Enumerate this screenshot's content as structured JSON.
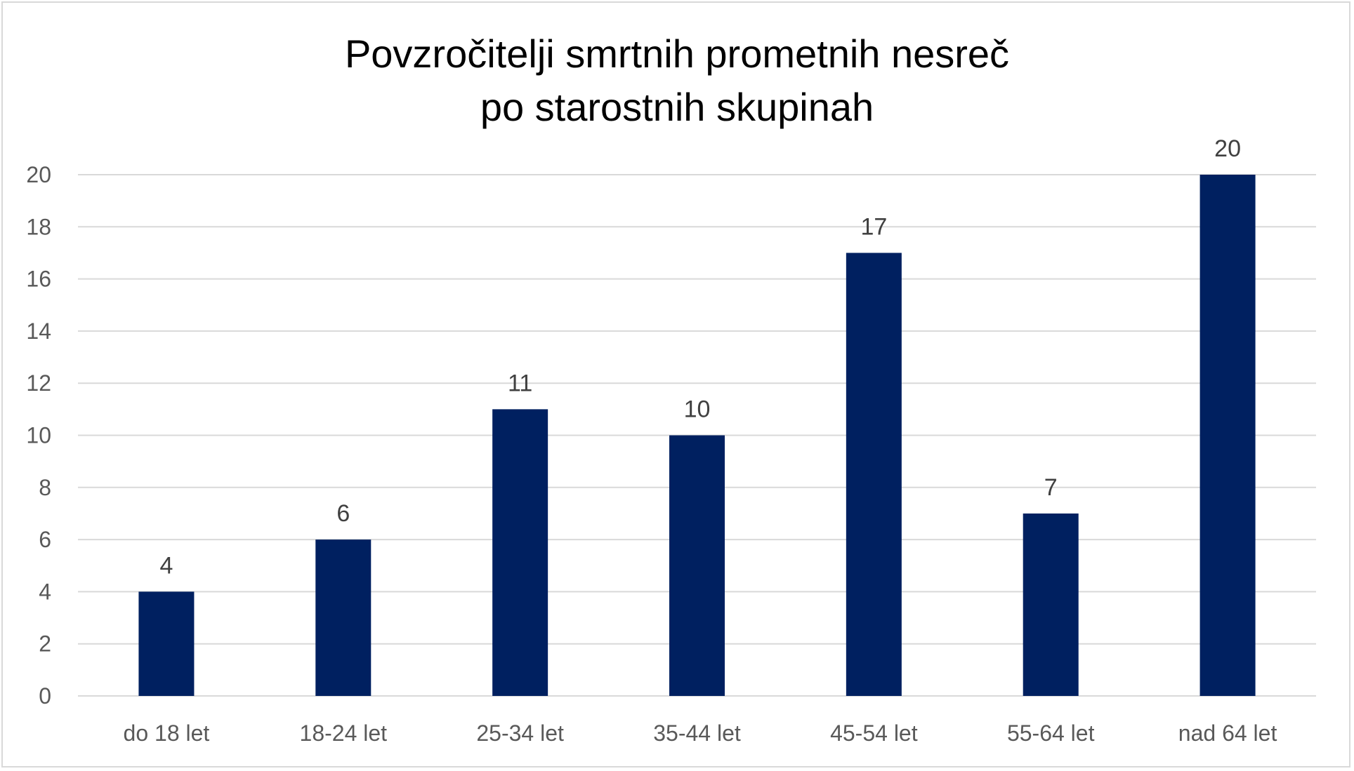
{
  "chart_data": {
    "type": "bar",
    "title_lines": [
      "Povzročitelji smrtnih prometnih nesreč",
      "po starostnih skupinah"
    ],
    "categories": [
      "do 18 let",
      "18-24 let",
      "25-34 let",
      "35-44 let",
      "45-54 let",
      "55-64 let",
      "nad 64 let"
    ],
    "values": [
      4,
      6,
      11,
      10,
      17,
      7,
      20
    ],
    "data_labels": [
      "4",
      "6",
      "11",
      "10",
      "17",
      "7",
      "20"
    ],
    "y_ticks": [
      "0",
      "2",
      "4",
      "6",
      "8",
      "10",
      "12",
      "14",
      "16",
      "18",
      "20"
    ],
    "ylim": [
      0,
      20
    ],
    "xlabel": "",
    "ylabel": "",
    "grid": true,
    "legend": "none",
    "colors": {
      "bar": "#002060",
      "gridline": "#d9d9d9",
      "axis_text": "#595959",
      "data_label": "#404040",
      "title": "#000000",
      "border": "#d9d9d9"
    }
  }
}
